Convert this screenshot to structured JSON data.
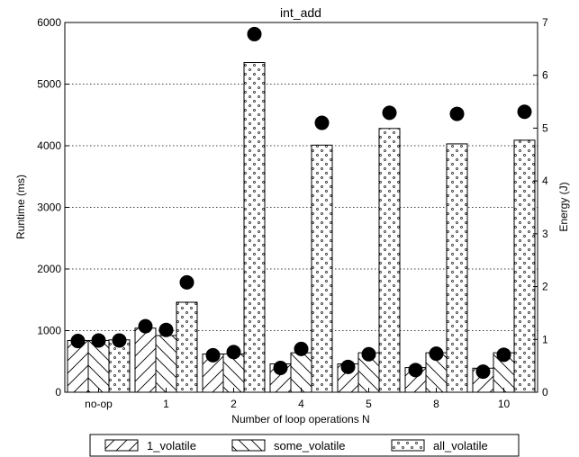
{
  "chart_data": {
    "type": "bar",
    "title": "int_add",
    "xlabel": "Number of loop operations N",
    "ylabel": "Runtime (ms)",
    "y2label": "Energy (J)",
    "categories": [
      "no-op",
      "1",
      "2",
      "4",
      "5",
      "8",
      "10"
    ],
    "ylim": [
      0,
      6000
    ],
    "yticks": [
      "0",
      "1000",
      "2000",
      "3000",
      "4000",
      "5000",
      "6000"
    ],
    "y2lim": [
      0,
      7
    ],
    "y2ticks": [
      "0",
      "1",
      "2",
      "3",
      "4",
      "5",
      "6",
      "7"
    ],
    "grid": "horizontal dotted",
    "legend_position": "bottom",
    "series": [
      {
        "name": "1_volatile",
        "pattern": "forward-hatch",
        "values": [
          840,
          1040,
          620,
          460,
          460,
          400,
          390
        ]
      },
      {
        "name": "some_volatile",
        "pattern": "backward-hatch",
        "values": [
          840,
          920,
          620,
          640,
          640,
          640,
          640
        ]
      },
      {
        "name": "all_volatile",
        "pattern": "dots",
        "values": [
          850,
          1460,
          5350,
          4010,
          4280,
          4030,
          4090
        ]
      }
    ],
    "energy_points": {
      "marker": "filled-circle",
      "values": [
        [
          0.97,
          0.98,
          0.98
        ],
        [
          1.25,
          1.18,
          2.08
        ],
        [
          0.7,
          0.76,
          6.78
        ],
        [
          0.46,
          0.82,
          5.1
        ],
        [
          0.48,
          0.72,
          5.29
        ],
        [
          0.42,
          0.73,
          5.27
        ],
        [
          0.39,
          0.71,
          5.31
        ]
      ]
    }
  }
}
